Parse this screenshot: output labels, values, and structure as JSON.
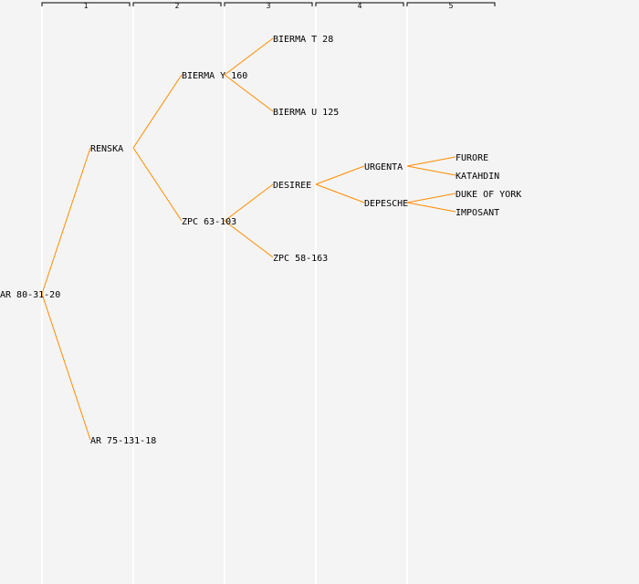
{
  "generations": [
    "1",
    "2",
    "3",
    "4",
    "5"
  ],
  "colors": {
    "background": "#f4f4f4",
    "edge": "#ff8c00",
    "column_divider": "#ffffff",
    "text": "#000000"
  },
  "tree": {
    "label": "AR 80-31-20",
    "children": [
      {
        "label": "RENSKA",
        "children": [
          {
            "label": "BIERMA Y 160",
            "children": [
              {
                "label": "BIERMA T 28",
                "children": []
              },
              {
                "label": "BIERMA U 125",
                "children": []
              }
            ]
          },
          {
            "label": "ZPC 63-103",
            "children": [
              {
                "label": "DESIREE",
                "children": [
                  {
                    "label": "URGENTA",
                    "children": [
                      {
                        "label": "FURORE",
                        "children": []
                      },
                      {
                        "label": "KATAHDIN",
                        "children": []
                      }
                    ]
                  },
                  {
                    "label": "DEPESCHE",
                    "children": [
                      {
                        "label": "DUKE OF YORK",
                        "children": []
                      },
                      {
                        "label": "IMPOSANT",
                        "children": []
                      }
                    ]
                  }
                ]
              },
              {
                "label": "ZPC 58-163",
                "children": []
              }
            ]
          }
        ]
      },
      {
        "label": "AR 75-131-18",
        "children": []
      }
    ]
  }
}
